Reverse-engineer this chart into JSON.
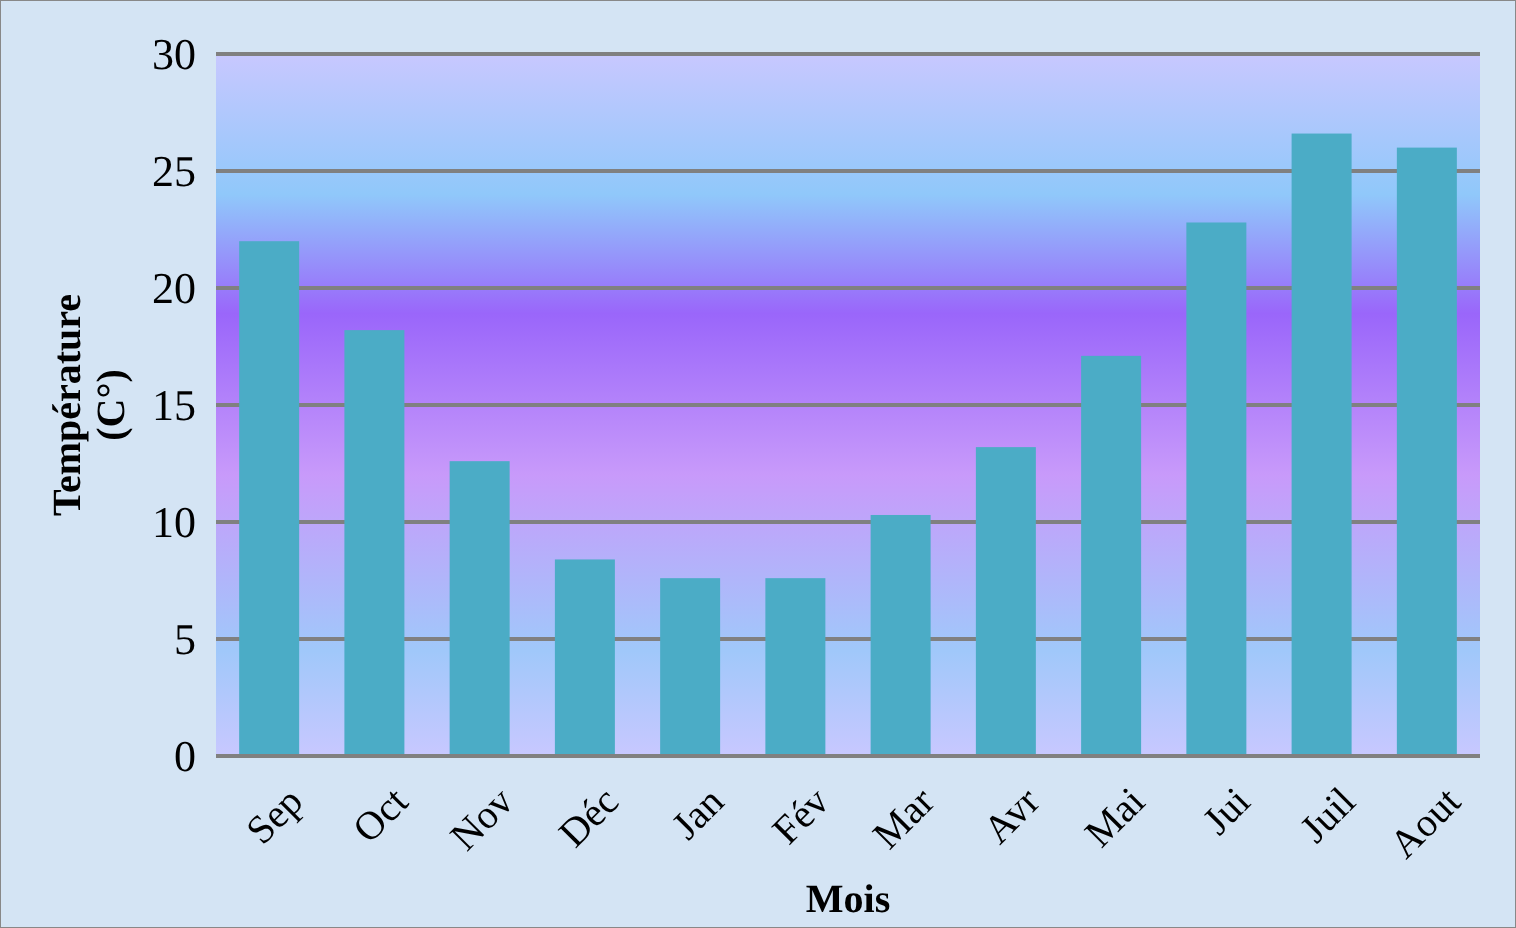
{
  "chart_data": {
    "type": "bar",
    "xlabel": "Mois",
    "ylabel": "Température (C°)",
    "categories": [
      "Sep",
      "Oct",
      "Nov",
      "Déc",
      "Jan",
      "Fév",
      "Mar",
      "Avr",
      "Mai",
      "Jui",
      "Juil",
      "Aout"
    ],
    "values": [
      22,
      18.2,
      12.6,
      8.4,
      7.6,
      7.6,
      10.3,
      13.2,
      17.1,
      22.8,
      26.6,
      26.0
    ],
    "color": "#4bacc6",
    "ylim": [
      0,
      30
    ],
    "yticks": [
      0,
      5,
      10,
      15,
      20,
      25,
      30
    ],
    "grid": "y"
  }
}
